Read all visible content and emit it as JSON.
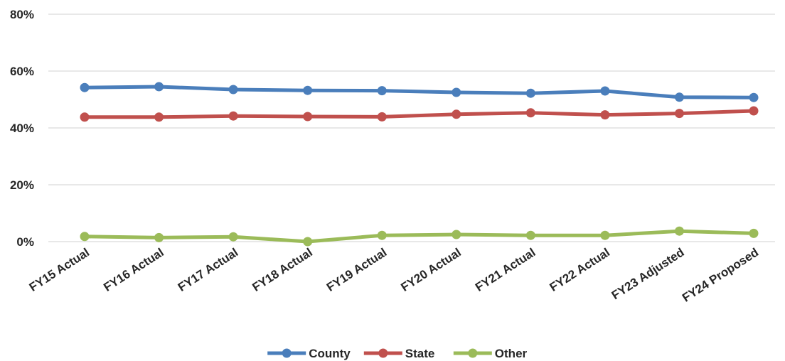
{
  "chart_data": {
    "type": "line",
    "title": "",
    "xlabel": "",
    "ylabel": "",
    "categories": [
      "FY15 Actual",
      "FY16 Actual",
      "FY17 Actual",
      "FY18 Actual",
      "FY19 Actual",
      "FY20 Actual",
      "FY21 Actual",
      "FY22 Actual",
      "FY23 Adjusted",
      "FY24 Proposed"
    ],
    "ylim": [
      0,
      80
    ],
    "yticks": [
      0,
      20,
      40,
      60,
      80
    ],
    "ytick_labels": [
      "0%",
      "20%",
      "40%",
      "60%",
      "80%"
    ],
    "grid": true,
    "legend_position": "bottom",
    "series": [
      {
        "name": "County",
        "color": "#4a7ebb",
        "values": [
          54.2,
          54.5,
          53.5,
          53.2,
          53.1,
          52.5,
          52.2,
          53.0,
          50.8,
          50.7
        ]
      },
      {
        "name": "State",
        "color": "#c0504d",
        "values": [
          43.8,
          43.8,
          44.2,
          44.0,
          43.9,
          44.8,
          45.3,
          44.6,
          45.1,
          46.0
        ]
      },
      {
        "name": "Other",
        "color": "#9bbb59",
        "values": [
          1.8,
          1.4,
          1.7,
          0.0,
          2.2,
          2.5,
          2.2,
          2.2,
          3.7,
          2.9
        ]
      }
    ]
  }
}
